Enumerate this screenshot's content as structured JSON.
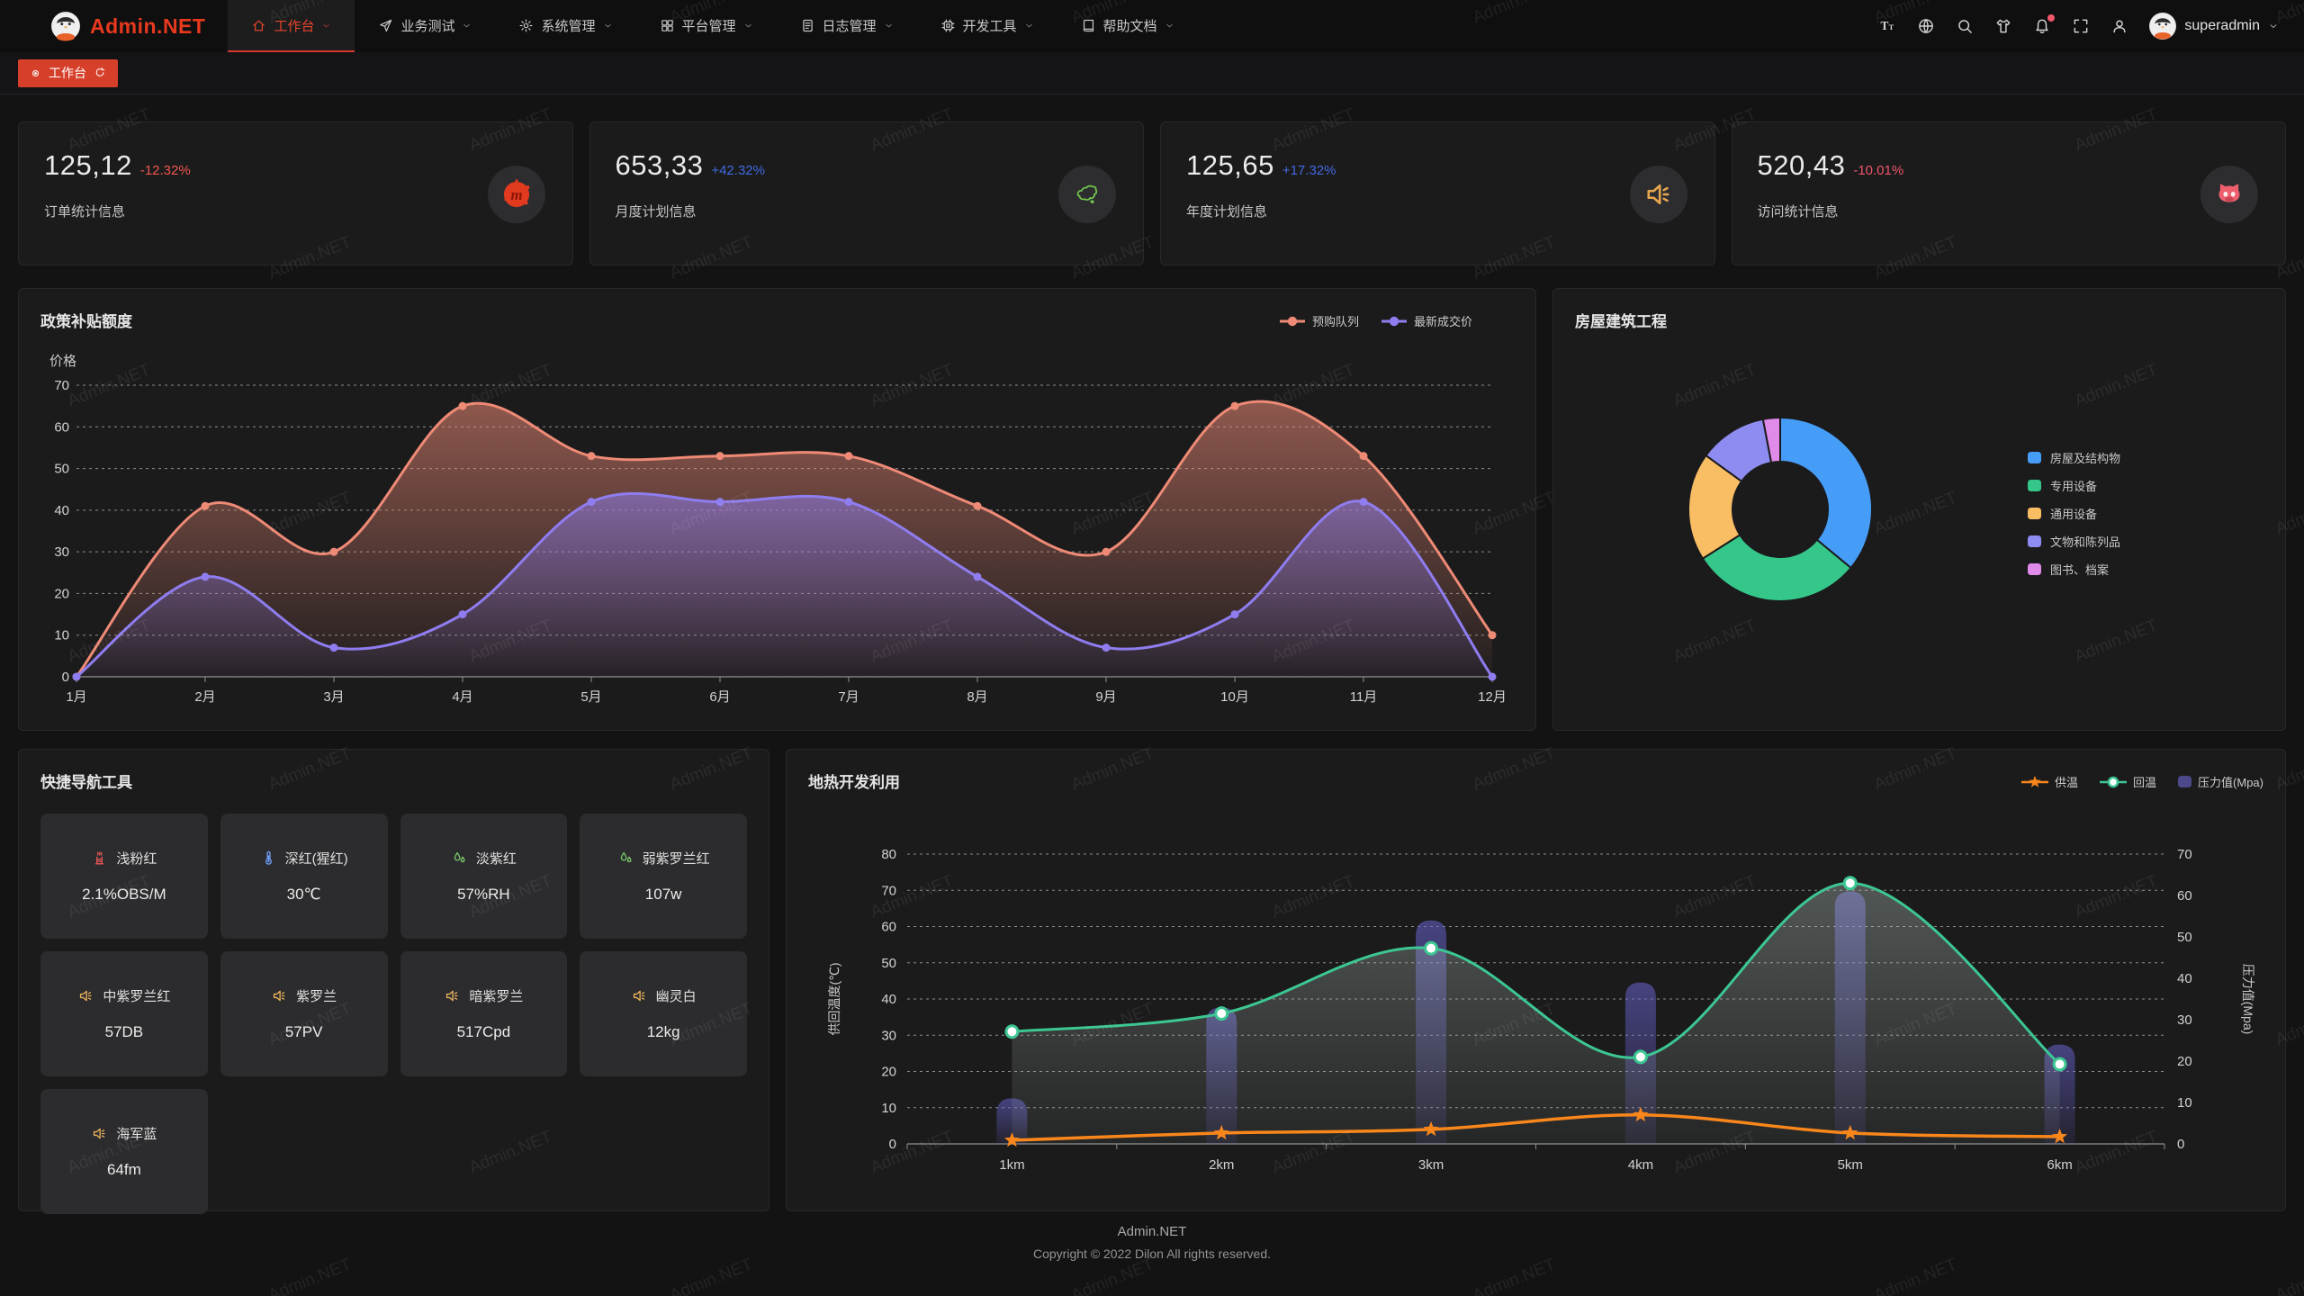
{
  "navbar": {
    "logo": "Admin.NET",
    "menu": [
      {
        "label": "工作台",
        "icon": "home-icon",
        "active": true
      },
      {
        "label": "业务测试",
        "icon": "send-icon",
        "active": false
      },
      {
        "label": "系统管理",
        "icon": "gear-icon",
        "active": false
      },
      {
        "label": "平台管理",
        "icon": "grid-icon",
        "active": false
      },
      {
        "label": "日志管理",
        "icon": "log-icon",
        "active": false
      },
      {
        "label": "开发工具",
        "icon": "cpu-icon",
        "active": false
      },
      {
        "label": "帮助文档",
        "icon": "book-icon",
        "active": false
      }
    ],
    "right_icons": [
      "font-size-icon",
      "language-icon",
      "search-icon",
      "theme-icon",
      "bell-icon",
      "fullscreen-icon",
      "user-icon"
    ],
    "has_notification_dot": true,
    "username": "superadmin"
  },
  "tabbar": {
    "tabs": [
      {
        "label": "工作台",
        "active": true
      }
    ]
  },
  "stat_cards": [
    {
      "value": "125,12",
      "delta": "-12.32%",
      "delta_color": "#f1564f",
      "label": "订单统计信息",
      "icon": "meetup-icon"
    },
    {
      "value": "653,33",
      "delta": "+42.32%",
      "delta_color": "#4169e1",
      "label": "月度计划信息",
      "icon": "china-map-icon"
    },
    {
      "value": "125,65",
      "delta": "+17.32%",
      "delta_color": "#4169e1",
      "label": "年度计划信息",
      "icon": "horn-icon"
    },
    {
      "value": "520,43",
      "delta": "-10.01%",
      "delta_color": "#f1566b",
      "label": "访问统计信息",
      "icon": "cat-icon"
    }
  ],
  "chart_data": [
    {
      "type": "area",
      "title": "政策补贴额度",
      "ylabel": "价格",
      "ylim": [
        0,
        70
      ],
      "y_ticks": [
        0,
        10,
        20,
        30,
        40,
        50,
        60,
        70
      ],
      "categories": [
        "1月",
        "2月",
        "3月",
        "4月",
        "5月",
        "6月",
        "7月",
        "8月",
        "9月",
        "10月",
        "11月",
        "12月"
      ],
      "series": [
        {
          "name": "预购队列",
          "color": "#ee8a76",
          "values": [
            0,
            41,
            30,
            65,
            53,
            53,
            53,
            41,
            30,
            65,
            53,
            10
          ]
        },
        {
          "name": "最新成交价",
          "color": "#8f7df0",
          "values": [
            0,
            24,
            7,
            15,
            42,
            42,
            42,
            24,
            7,
            15,
            42,
            0
          ]
        }
      ],
      "legend_position": "top-right",
      "grid": "dashed"
    },
    {
      "type": "pie",
      "title": "房屋建筑工程",
      "donut": true,
      "legend_position": "right",
      "items": [
        {
          "name": "房屋及结构物",
          "value": 36,
          "color": "#459df8"
        },
        {
          "name": "专用设备",
          "value": 30,
          "color": "#35c78a"
        },
        {
          "name": "通用设备",
          "value": 19,
          "color": "#f9bd64"
        },
        {
          "name": "文物和陈列品",
          "value": 12,
          "color": "#8e8cf0"
        },
        {
          "name": "图书、档案",
          "value": 3,
          "color": "#e08ae9"
        }
      ]
    },
    {
      "type": "line+bar",
      "title": "地热开发利用",
      "categories": [
        "1km",
        "2km",
        "3km",
        "4km",
        "5km",
        "6km"
      ],
      "left_axis": {
        "label": "供回温度(℃)",
        "min": 0,
        "max": 80,
        "ticks": [
          0,
          10,
          20,
          30,
          40,
          50,
          60,
          70,
          80
        ]
      },
      "right_axis": {
        "label": "压力值(Mpa)",
        "min": 0,
        "max": 70,
        "ticks": [
          0,
          10,
          20,
          30,
          40,
          50,
          60,
          70
        ]
      },
      "series": [
        {
          "name": "供温",
          "kind": "line",
          "marker": "star",
          "color": "#f8861b",
          "axis": "left",
          "values": [
            1,
            3,
            4,
            8,
            3,
            2
          ]
        },
        {
          "name": "回温",
          "kind": "line",
          "marker": "circle",
          "color": "#3cc792",
          "axis": "left",
          "values": [
            31,
            36,
            54,
            24,
            72,
            22
          ]
        },
        {
          "name": "压力值(Mpa)",
          "kind": "bar",
          "color": "#55509e",
          "axis": "right",
          "values": [
            11,
            33,
            54,
            39,
            61,
            24
          ]
        }
      ]
    }
  ],
  "shortcuts": {
    "title": "快捷导航工具",
    "items": [
      {
        "label": "浅粉红",
        "value": "2.1%OBS/M",
        "icon": "factory-icon",
        "icon_color": "#e05656"
      },
      {
        "label": "深红(猩红)",
        "value": "30℃",
        "icon": "thermometer-icon",
        "icon_color": "#6f9ff8"
      },
      {
        "label": "淡紫红",
        "value": "57%RH",
        "icon": "drops-icon",
        "icon_color": "#7ac86a"
      },
      {
        "label": "弱紫罗兰红",
        "value": "107w",
        "icon": "drops-icon",
        "icon_color": "#7ac86a"
      },
      {
        "label": "中紫罗兰红",
        "value": "57DB",
        "icon": "horn-icon",
        "icon_color": "#e8b15c"
      },
      {
        "label": "紫罗兰",
        "value": "57PV",
        "icon": "horn-icon",
        "icon_color": "#e8b15c"
      },
      {
        "label": "暗紫罗兰",
        "value": "517Cpd",
        "icon": "horn-icon",
        "icon_color": "#e8b15c"
      },
      {
        "label": "幽灵白",
        "value": "12kg",
        "icon": "horn-icon",
        "icon_color": "#e8b15c"
      },
      {
        "label": "海军蓝",
        "value": "64fm",
        "icon": "horn-icon",
        "icon_color": "#e8b15c"
      }
    ]
  },
  "footer": {
    "brand": "Admin.NET",
    "copyright": "Copyright © 2022 Dilon All rights reserved."
  },
  "watermark_text": "Admin.NET",
  "colors": {
    "accent_red": "#d6402a",
    "panel_bg": "#1b1b1c",
    "page_bg": "#131314"
  }
}
